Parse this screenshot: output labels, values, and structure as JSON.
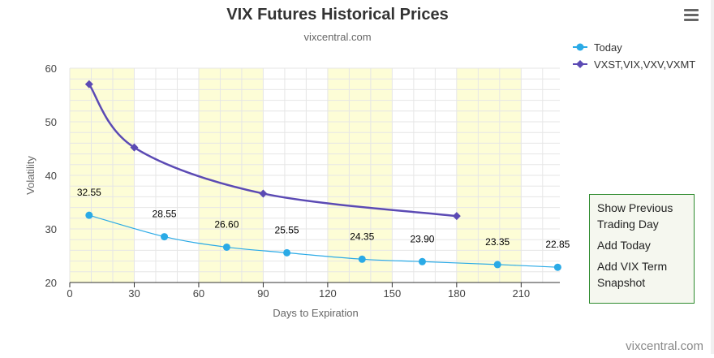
{
  "menu": {
    "icon": "hamburger-menu-icon"
  },
  "side_panel": {
    "items": [
      {
        "label": "Show Previous Trading Day"
      },
      {
        "label": "Add Today"
      },
      {
        "label": "Add VIX Term Snapshot"
      }
    ]
  },
  "credits": "vixcentral.com",
  "chart_data": {
    "type": "line",
    "title": "VIX Futures Historical Prices",
    "subtitle": "vixcentral.com",
    "xlabel": "Days to Expiration",
    "ylabel": "Volatility",
    "xlim": [
      0,
      228
    ],
    "ylim": [
      20,
      60
    ],
    "x_ticks": [
      0,
      30,
      60,
      90,
      120,
      150,
      180,
      210
    ],
    "y_ticks": [
      20,
      30,
      40,
      50,
      60
    ],
    "bands": [
      [
        0,
        30
      ],
      [
        60,
        90
      ],
      [
        120,
        150
      ],
      [
        180,
        210
      ]
    ],
    "band_color": "#fdfdd6",
    "grid": true,
    "legend_position": "top-right",
    "series": [
      {
        "name": "Today",
        "color": "#2aaae6",
        "marker": "circle",
        "show_labels": true,
        "points": [
          {
            "x": 9,
            "y": 32.55
          },
          {
            "x": 44,
            "y": 28.55
          },
          {
            "x": 73,
            "y": 26.6
          },
          {
            "x": 101,
            "y": 25.55
          },
          {
            "x": 136,
            "y": 24.35
          },
          {
            "x": 164,
            "y": 23.9
          },
          {
            "x": 199,
            "y": 23.35
          },
          {
            "x": 227,
            "y": 22.85
          }
        ]
      },
      {
        "name": "VXST,VIX,VXV,VXMT",
        "color": "#5b4ab4",
        "marker": "diamond",
        "show_labels": false,
        "points": [
          {
            "x": 9,
            "y": 57.0
          },
          {
            "x": 30,
            "y": 45.2
          },
          {
            "x": 90,
            "y": 36.6
          },
          {
            "x": 180,
            "y": 32.4
          }
        ]
      }
    ]
  }
}
